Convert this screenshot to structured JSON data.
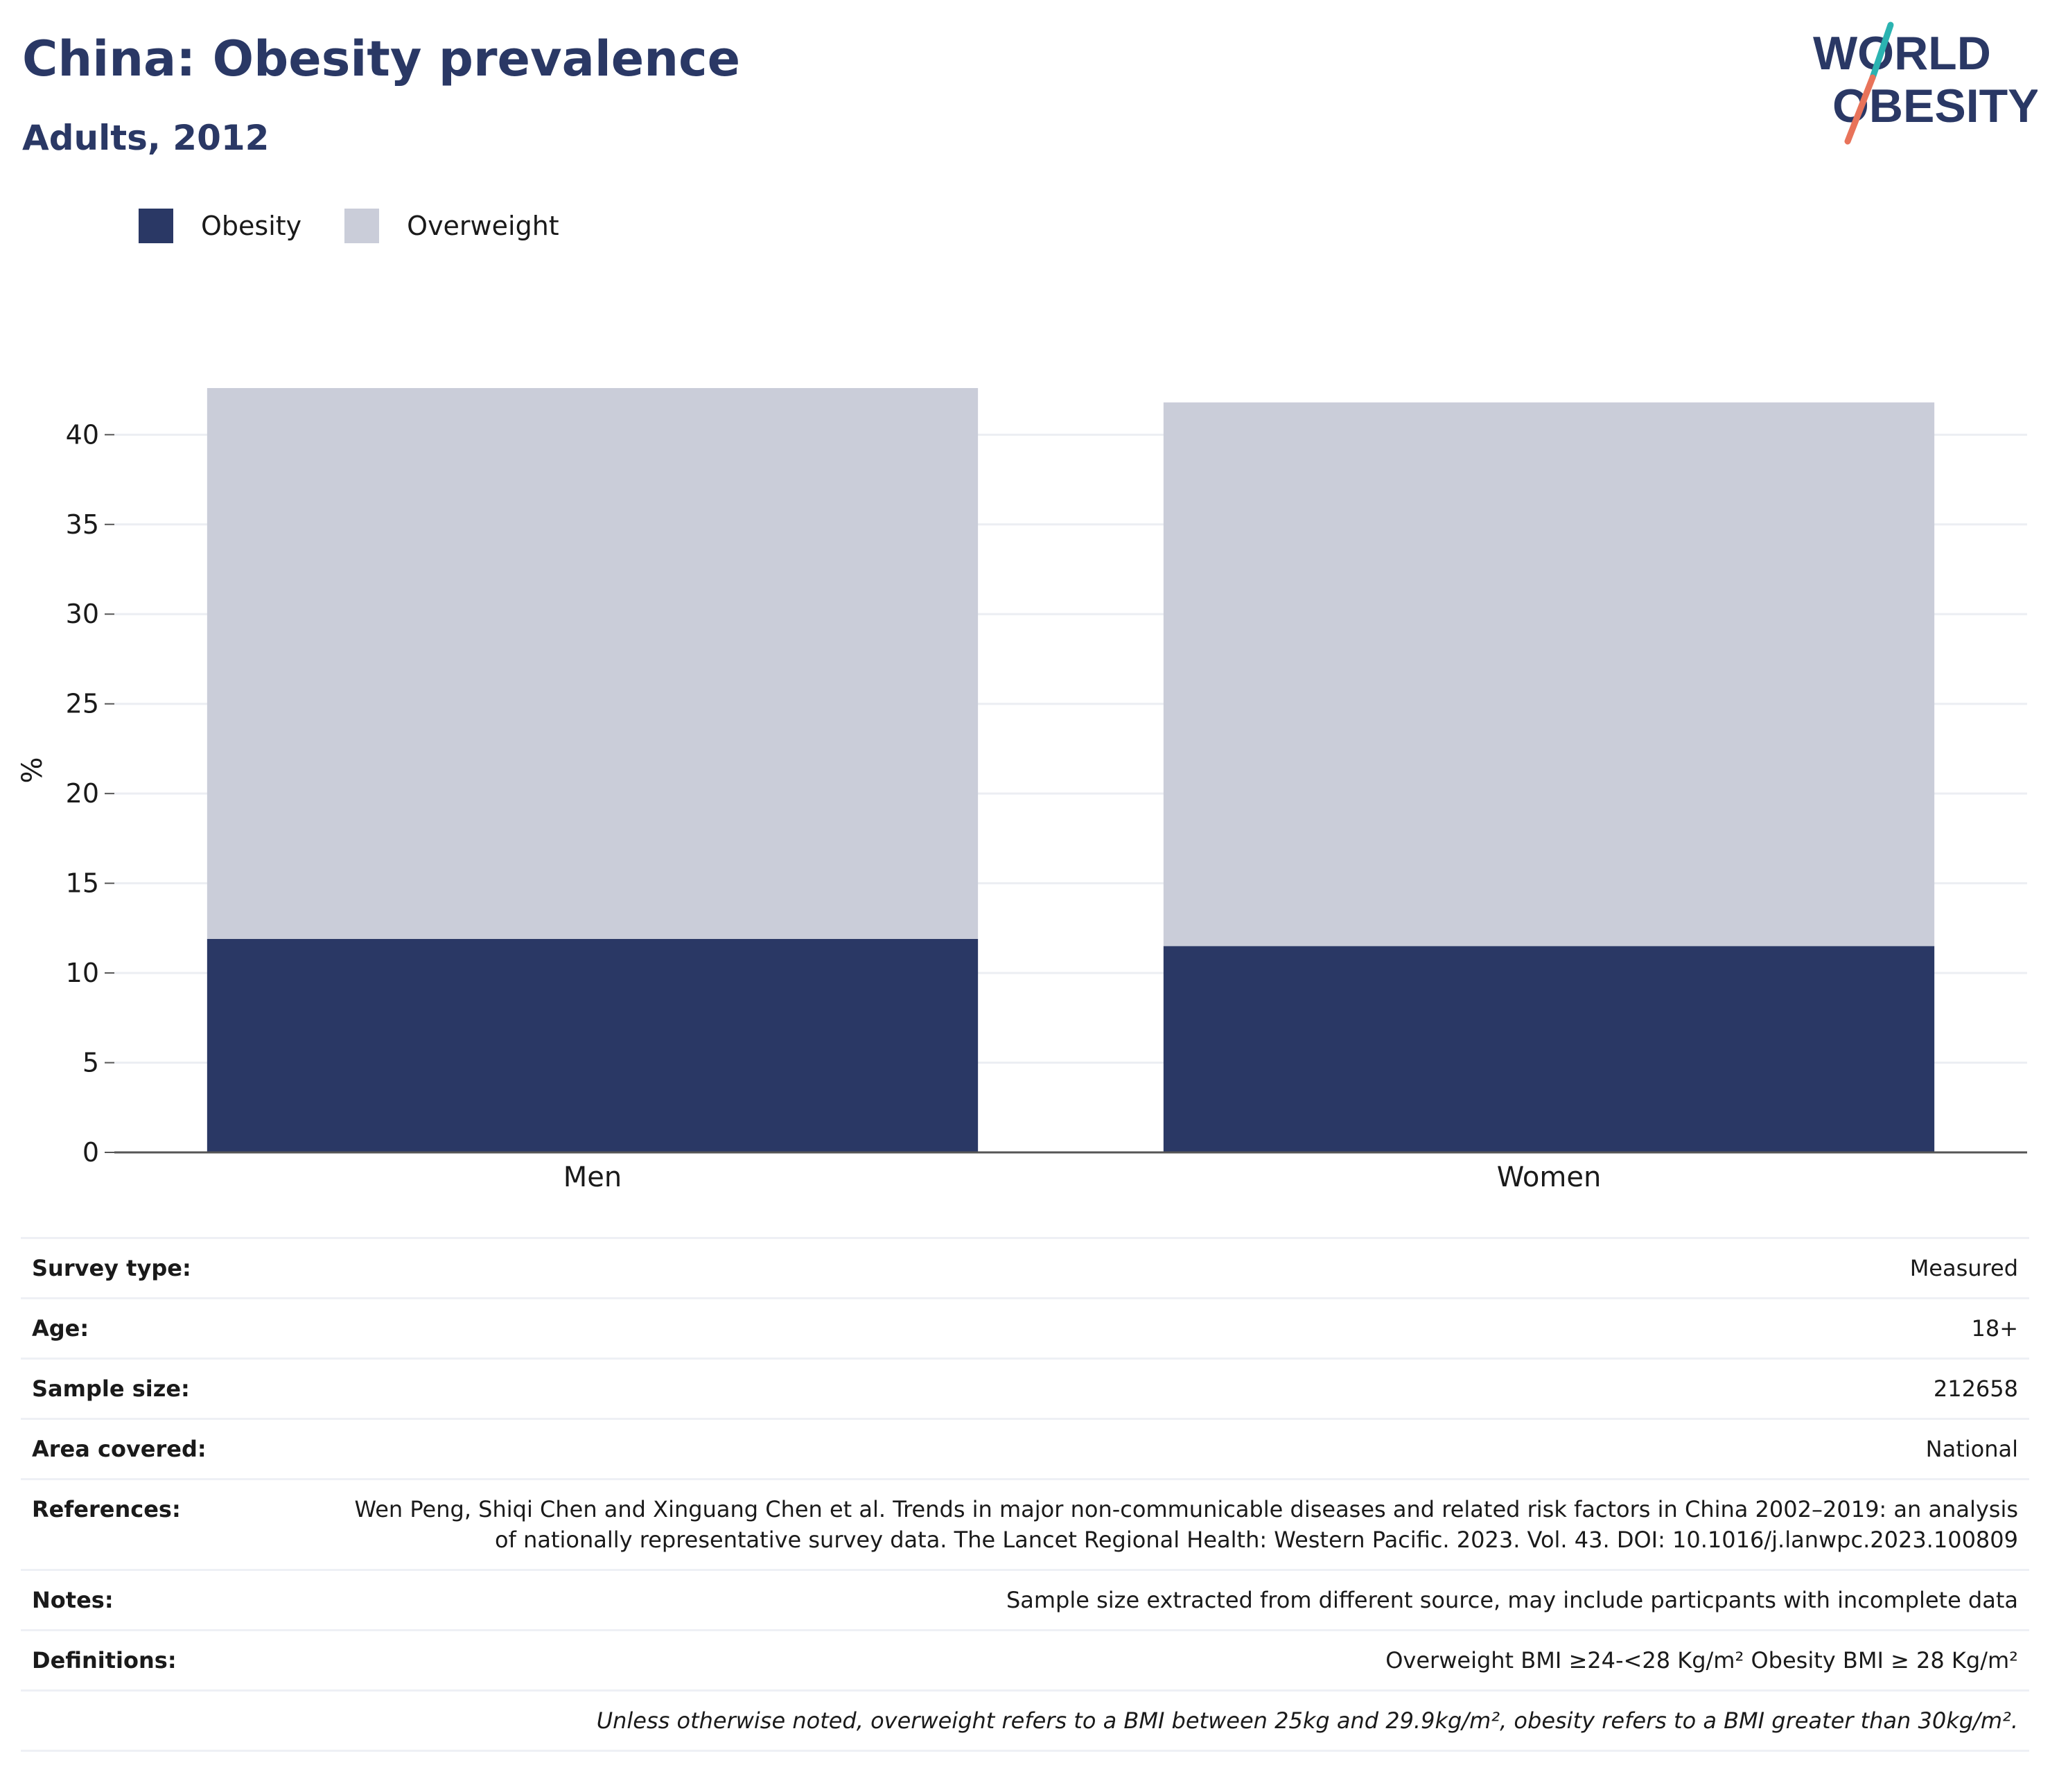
{
  "header": {
    "title": "China: Obesity prevalence",
    "subtitle": "Adults, 2012"
  },
  "logo": {
    "line1": "WORLD",
    "line2": "OBESITY",
    "colors": {
      "text": "#2a3865",
      "slash_teal": "#2bb3b1",
      "slash_coral": "#e8735a"
    }
  },
  "colors": {
    "obesity": "#2a3865",
    "overweight": "#cacdd9",
    "title": "#2a3865",
    "grid": "#eceef3",
    "axis": "#555555"
  },
  "legend": [
    {
      "label": "Obesity",
      "color": "#2a3865"
    },
    {
      "label": "Overweight",
      "color": "#cacdd9"
    }
  ],
  "chart_data": {
    "type": "bar",
    "stacked": true,
    "categories": [
      "Men",
      "Women"
    ],
    "series": [
      {
        "name": "Obesity",
        "values": [
          11.9,
          11.5
        ]
      },
      {
        "name": "Overweight",
        "values": [
          30.7,
          30.3
        ]
      }
    ],
    "ylabel": "%",
    "ylim": [
      0,
      42.6
    ],
    "yticks": [
      0,
      5,
      10,
      15,
      20,
      25,
      30,
      35,
      40
    ],
    "grid": true,
    "legend_position": "top-left"
  },
  "info": [
    {
      "label": "Survey type:",
      "value": "Measured"
    },
    {
      "label": "Age:",
      "value": "18+"
    },
    {
      "label": "Sample size:",
      "value": "212658"
    },
    {
      "label": "Area covered:",
      "value": "National"
    },
    {
      "label": "References:",
      "value": "Wen Peng, Shiqi Chen and Xinguang Chen et al. Trends in major non-communicable diseases and related risk factors in China 2002–2019: an analysis of nationally representative survey data. The Lancet Regional Health: Western Pacific. 2023. Vol. 43. DOI: 10.1016/j.lanwpc.2023.100809"
    },
    {
      "label": "Notes:",
      "value": "Sample size extracted from different source, may include particpants with incomplete data"
    },
    {
      "label": "Definitions:",
      "value": "Overweight BMI ≥24-<28 Kg/m² Obesity BMI ≥ 28 Kg/m²"
    }
  ],
  "footnote": "Unless otherwise noted, overweight refers to a BMI between 25kg and 29.9kg/m², obesity refers to a BMI greater than 30kg/m²."
}
